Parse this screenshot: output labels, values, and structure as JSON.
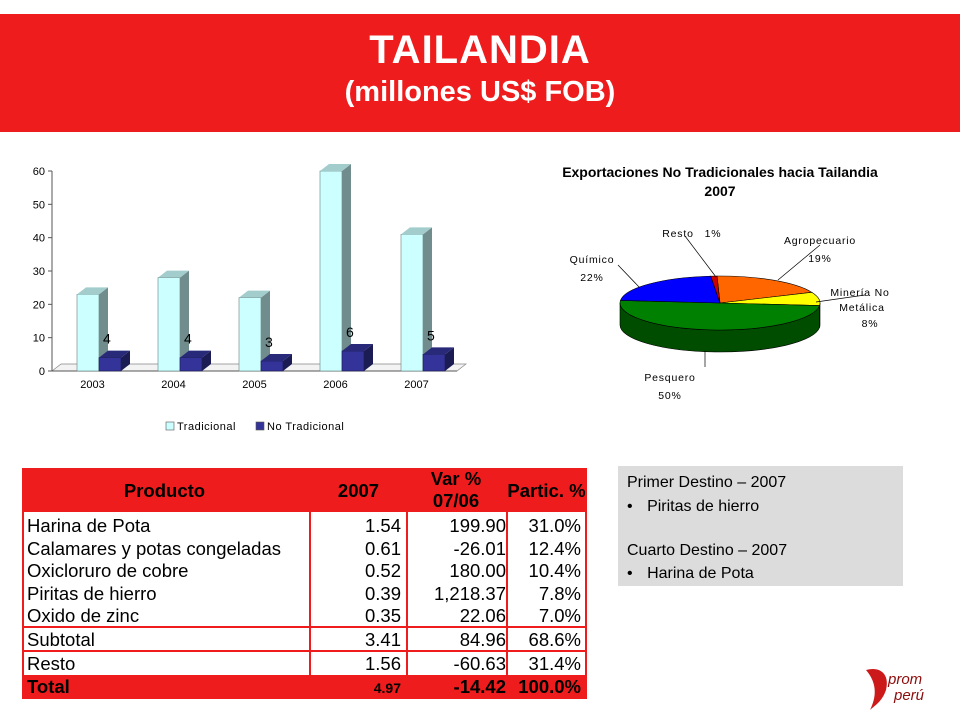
{
  "title": {
    "main": "TAILANDIA",
    "sub": "(millones US$ FOB)"
  },
  "colors": {
    "banner_red": "#ee1c1c",
    "tradicional": "#ccffff",
    "no_tradicional": "#333399"
  },
  "chart_data": [
    {
      "type": "bar",
      "title": "",
      "categories": [
        "2003",
        "2004",
        "2005",
        "2006",
        "2007"
      ],
      "ylim": [
        0,
        60
      ],
      "yticks": [
        0,
        10,
        20,
        30,
        40,
        50,
        60
      ],
      "grid": false,
      "legend_position": "bottom",
      "series": [
        {
          "name": "Tradicional",
          "color": "#ccffff",
          "values": [
            23,
            28,
            22,
            60,
            41
          ]
        },
        {
          "name": "No Tradicional",
          "color": "#333399",
          "values": [
            4,
            4,
            3,
            6,
            5
          ],
          "data_labels": [
            "4",
            "4",
            "3",
            "6",
            "5"
          ]
        }
      ]
    },
    {
      "type": "pie",
      "title": "Exportaciones No Tradicionales hacia Tailandia",
      "subtitle": "2007",
      "slices": [
        {
          "label": "Agropecuario",
          "value": 19,
          "pct_label": "19%",
          "color": "#ff6600"
        },
        {
          "label": "Minería No Metálica",
          "value": 8,
          "pct_label": "8%",
          "color": "#ffff00"
        },
        {
          "label": "Pesquero",
          "value": 50,
          "pct_label": "50%",
          "color": "#008000"
        },
        {
          "label": "Químico",
          "value": 22,
          "pct_label": "22%",
          "color": "#0000ff"
        },
        {
          "label": "Resto",
          "value": 1,
          "pct_label": "1%",
          "color": "#cc0000"
        }
      ]
    }
  ],
  "table": {
    "headers": {
      "producto": "Producto",
      "year": "2007",
      "var_line1": "Var %",
      "var_line2": "07/06",
      "partic": "Partic. %"
    },
    "rows": [
      {
        "producto": "Harina de Pota",
        "year": "1.54",
        "var": "199.90",
        "partic": "31.0%"
      },
      {
        "producto": "Calamares y potas congeladas",
        "year": "0.61",
        "var": "-26.01",
        "partic": "12.4%"
      },
      {
        "producto": "Oxicloruro de cobre",
        "year": "0.52",
        "var": "180.00",
        "partic": "10.4%"
      },
      {
        "producto": "Piritas de hierro",
        "year": "0.39",
        "var": "1,218.37",
        "partic": "7.8%"
      },
      {
        "producto": "Oxido de zinc",
        "year": "0.35",
        "var": "22.06",
        "partic": "7.0%"
      },
      {
        "producto": "Subtotal",
        "year": "3.41",
        "var": "84.96",
        "partic": "68.6%"
      },
      {
        "producto": "Resto",
        "year": "1.56",
        "var": "-60.63",
        "partic": "31.4%"
      }
    ],
    "total": {
      "producto": "Total",
      "year": "4.97",
      "var": "-14.42",
      "partic": "100.0%"
    }
  },
  "info_box": {
    "line1": "Primer Destino – 2007",
    "bullet1": "Piritas de hierro",
    "line2": "Cuarto Destino – 2007",
    "bullet2": "Harina de Pota"
  },
  "logo": {
    "text1": "prom",
    "text2": "perú"
  }
}
